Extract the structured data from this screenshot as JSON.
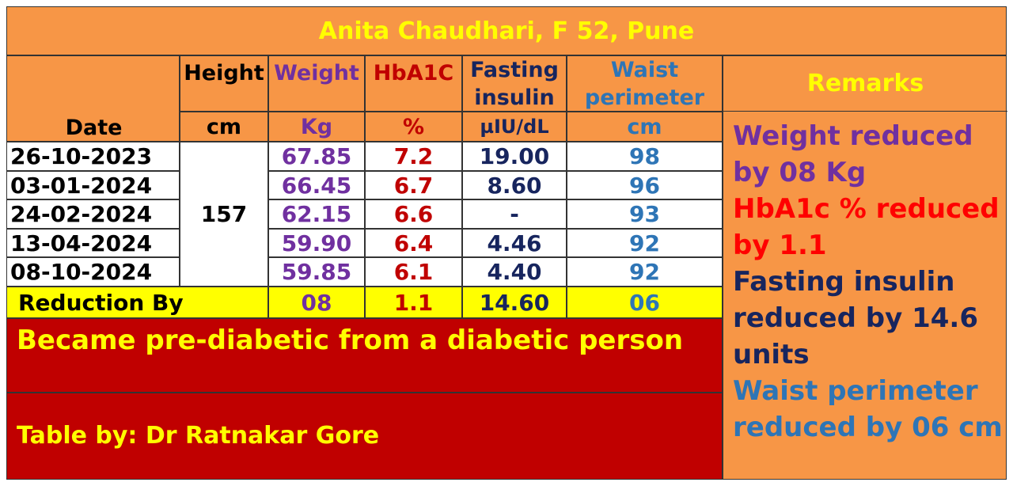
{
  "title": "Anita Chaudhari, F 52, Pune",
  "headers": {
    "height": "Height",
    "weight": "Weight",
    "hba1c": "HbA1C",
    "fasting": "Fasting insulin",
    "waist": "Waist perimeter",
    "remarks": "Remarks",
    "date": "Date"
  },
  "units": {
    "height": "cm",
    "weight": "Kg",
    "hba1c": "%",
    "fasting": "µIU/dL",
    "waist": "cm"
  },
  "height_value": "157",
  "rows": [
    {
      "date": "26-10-2023",
      "weight": "67.85",
      "hba1c": "7.2",
      "fasting": "19.00",
      "waist": "98"
    },
    {
      "date": "03-01-2024",
      "weight": "66.45",
      "hba1c": "6.7",
      "fasting": "8.60",
      "waist": "96"
    },
    {
      "date": "24-02-2024",
      "weight": "62.15",
      "hba1c": "6.6",
      "fasting": "-",
      "waist": "93"
    },
    {
      "date": "13-04-2024",
      "weight": "59.90",
      "hba1c": "6.4",
      "fasting": "4.46",
      "waist": "92"
    },
    {
      "date": "08-10-2024",
      "weight": "59.85",
      "hba1c": "6.1",
      "fasting": "4.40",
      "waist": "92"
    }
  ],
  "reduction": {
    "label": "Reduction By",
    "weight": "08",
    "hba1c": "1.1",
    "fasting": "14.60",
    "waist": "06"
  },
  "remarks": {
    "weight": "Weight reduced by 08 Kg",
    "hba1c": "HbA1c % reduced by 1.1",
    "fasting": "Fasting insulin reduced by 14.6 units",
    "waist": "Waist perimeter reduced by 06 cm"
  },
  "banner": "Became pre-diabetic from a diabetic person",
  "credit": "Table by: Dr Ratnakar Gore",
  "colors": {
    "background": "#F79646",
    "title_text": "#FFFF00",
    "weight": "#7030A0",
    "hba1c": "#C00000",
    "fasting": "#17255E",
    "waist": "#2E75B6",
    "reduction_row": "#FFFF00",
    "banner_bg": "#C00000"
  }
}
